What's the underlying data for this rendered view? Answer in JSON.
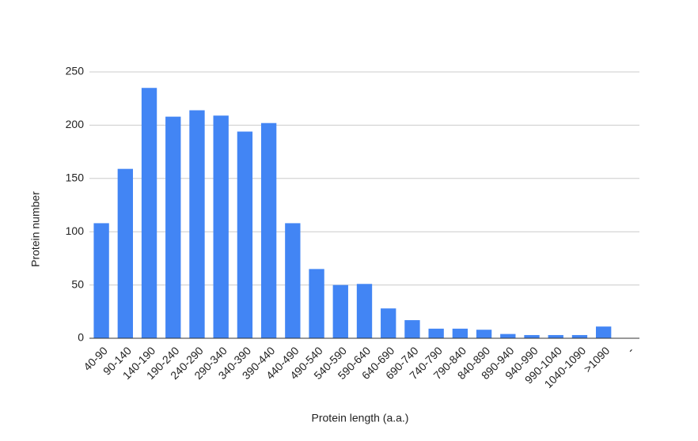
{
  "chart_data": {
    "type": "bar",
    "xlabel": "Protein length (a.a.)",
    "ylabel": "Protein number",
    "categories": [
      "40-90",
      "90-140",
      "140-190",
      "190-240",
      "240-290",
      "290-340",
      "340-390",
      "390-440",
      "440-490",
      "490-540",
      "540-590",
      "590-640",
      "640-690",
      "690-740",
      "740-790",
      "790-840",
      "840-890",
      "890-940",
      "940-990",
      "990-1040",
      "1040-1090",
      ">1090",
      "-"
    ],
    "values": [
      108,
      159,
      235,
      208,
      214,
      209,
      194,
      202,
      108,
      65,
      50,
      51,
      28,
      17,
      9,
      9,
      8,
      4,
      3,
      3,
      3,
      11,
      null
    ],
    "color": "#4285f4",
    "ylim": [
      0,
      250
    ],
    "yticks": [
      0,
      50,
      100,
      150,
      200,
      250
    ],
    "grid": true
  }
}
